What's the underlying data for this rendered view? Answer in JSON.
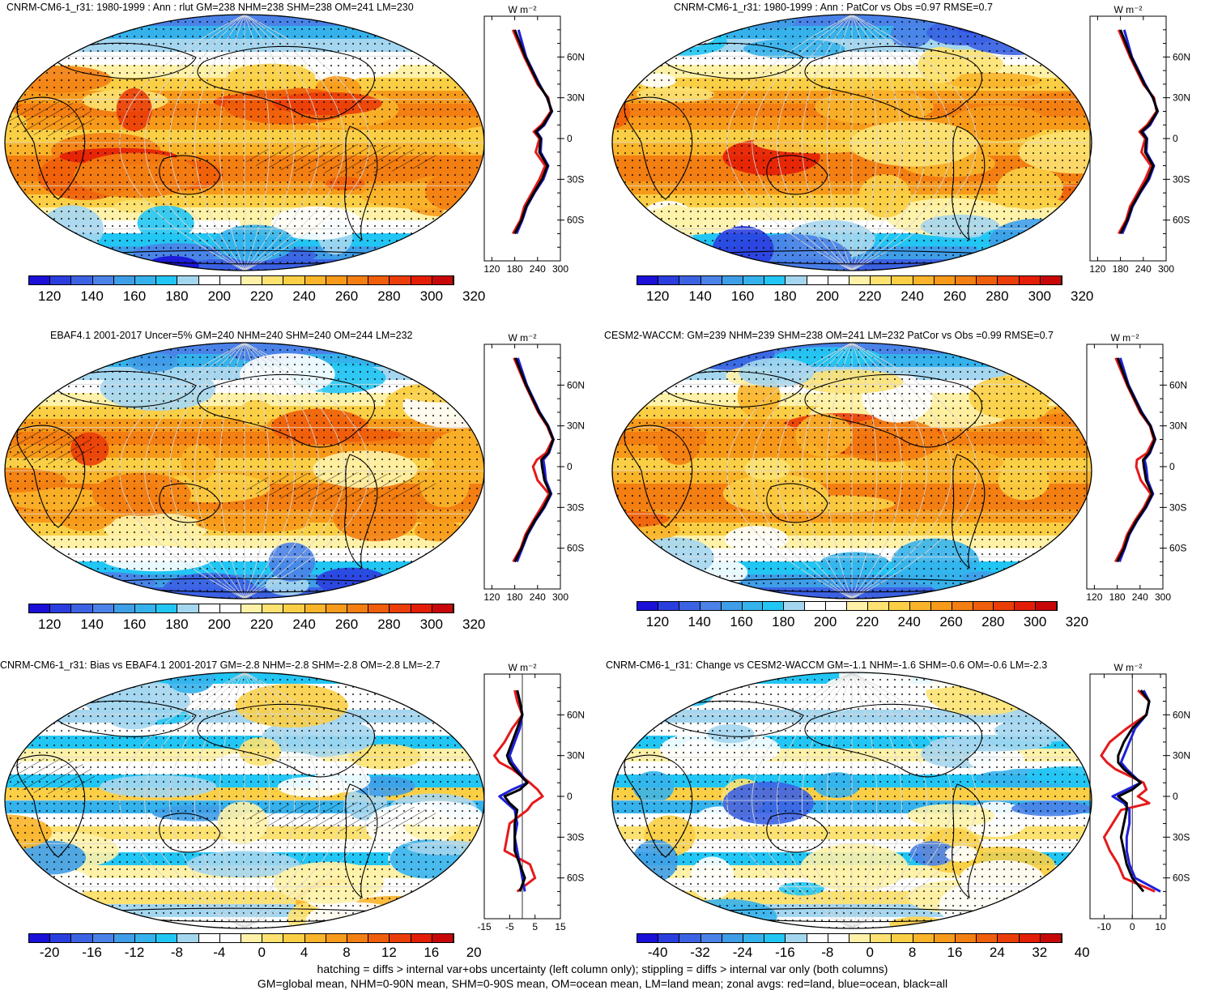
{
  "footer": {
    "line1": "hatching = diffs > internal var+obs uncertainty (left column only); stippling = diffs > internal var only (both columns)",
    "line2": "GM=global mean, NHM=0-90N mean, SHM=0-90S mean, OM=ocean mean, LM=land mean; zonal avgs: red=land, blue=ocean, black=all"
  },
  "colors": {
    "abs_scale": [
      "#1a10d8",
      "#2a3ee0",
      "#3c62e4",
      "#4a82e8",
      "#3f9ee8",
      "#35b2ec",
      "#22c6f4",
      "#a4d6f0",
      "#ffffff",
      "#ffffff",
      "#fff2a8",
      "#fde272",
      "#fbcf45",
      "#f9b42a",
      "#f79a1a",
      "#f37e12",
      "#ef5e0a",
      "#ea3d08",
      "#e41e06",
      "#c80808"
    ],
    "diff_scale": [
      "#1a10d8",
      "#2a3ee0",
      "#3c62e4",
      "#4a82e8",
      "#3f9ee8",
      "#35b2ec",
      "#22c6f4",
      "#a4d6f0",
      "#ffffff",
      "#ffffff",
      "#fff2a8",
      "#fde272",
      "#fbcf45",
      "#f9b42a",
      "#f79a1a",
      "#f37e12",
      "#ef5e0a",
      "#ea3d08",
      "#e41e06",
      "#c80808"
    ],
    "land_line": "#e41a1c",
    "ocean_line": "#1f20d8",
    "all_line": "#000000"
  },
  "units": "W m⁻²",
  "panels": [
    {
      "id": "model",
      "title": "CNRM-CM6-1_r31: 1980-1999 : Ann : rlut GM=238 NHM=238 SHM=238 OM=241 LM=230",
      "scale": "abs",
      "cbar_labels": [
        "120",
        "140",
        "160",
        "180",
        "200",
        "220",
        "240",
        "260",
        "280",
        "300",
        "320"
      ],
      "zonal_ticks_x": [
        "120",
        "180",
        "240",
        "300"
      ],
      "zonal_ticks_y": [
        "60N",
        "30N",
        "0",
        "30S",
        "60S"
      ]
    },
    {
      "id": "model-patcor",
      "title": "CNRM-CM6-1_r31: 1980-1999 : Ann : PatCor vs Obs =0.97 RMSE=0.7",
      "scale": "abs",
      "cbar_labels": [
        "120",
        "140",
        "160",
        "180",
        "200",
        "220",
        "240",
        "260",
        "280",
        "300",
        "320"
      ],
      "zonal_ticks_x": [
        "120",
        "180",
        "240",
        "300"
      ],
      "zonal_ticks_y": [
        "60N",
        "30N",
        "0",
        "30S",
        "60S"
      ]
    },
    {
      "id": "obs",
      "title": "EBAF4.1 2001-2017 Uncer=5% GM=240 NHM=240 SHM=240 OM=244 LM=232",
      "scale": "abs",
      "cbar_labels": [
        "120",
        "140",
        "160",
        "180",
        "200",
        "220",
        "240",
        "260",
        "280",
        "300",
        "320"
      ],
      "zonal_ticks_x": [
        "120",
        "180",
        "240",
        "300"
      ],
      "zonal_ticks_y": [
        "60N",
        "30N",
        "0",
        "30S",
        "60S"
      ]
    },
    {
      "id": "ref-model",
      "title": "CESM2-WACCM: GM=239 NHM=239 SHM=238 OM=241 LM=232 PatCor vs Obs =0.99 RMSE=0.7",
      "scale": "abs",
      "cbar_labels": [
        "120",
        "140",
        "160",
        "180",
        "200",
        "220",
        "240",
        "260",
        "280",
        "300",
        "320"
      ],
      "zonal_ticks_x": [
        "120",
        "180",
        "240",
        "300"
      ],
      "zonal_ticks_y": [
        "60N",
        "30N",
        "0",
        "30S",
        "60S"
      ]
    },
    {
      "id": "bias",
      "title": "CNRM-CM6-1_r31: Bias vs EBAF4.1 2001-2017 GM=-2.8 NHM=-2.8 SHM=-2.8 OM=-2.8 LM=-2.7",
      "scale": "diff",
      "cbar_labels": [
        "-20",
        "-16",
        "-12",
        "-8",
        "-4",
        "0",
        "4",
        "8",
        "12",
        "16",
        "20"
      ],
      "zonal_ticks_x": [
        "-15",
        "-5",
        "5",
        "15"
      ],
      "zonal_ticks_y": [
        "60N",
        "30N",
        "0",
        "30S",
        "60S"
      ]
    },
    {
      "id": "change",
      "title": "CNRM-CM6-1_r31: Change vs CESM2-WACCM GM=-1.1 NHM=-1.6 SHM=-0.6 OM=-0.6 LM=-2.3",
      "scale": "diff",
      "cbar_labels": [
        "-40",
        "-32",
        "-24",
        "-16",
        "-8",
        "0",
        "8",
        "16",
        "24",
        "32",
        "40"
      ],
      "zonal_ticks_x": [
        "-10",
        "0",
        "10"
      ],
      "zonal_ticks_y": [
        "60N",
        "30N",
        "0",
        "30S",
        "60S"
      ]
    }
  ],
  "chart_data": [
    {
      "type": "line",
      "title": "CNRM-CM6-1_r31: 1980-1999 : Ann : rlut GM=238 NHM=238 SHM=238 OM=241 LM=230",
      "xlabel": "W m⁻²",
      "xlim": [
        100,
        300
      ],
      "x_axis": "value",
      "y_axis": "latitude",
      "series": [
        {
          "name": "land",
          "lat": [
            80,
            60,
            40,
            30,
            20,
            10,
            5,
            0,
            -10,
            -20,
            -30,
            -40,
            -50,
            -60,
            -70
          ],
          "values": [
            175,
            205,
            240,
            268,
            275,
            250,
            230,
            245,
            235,
            260,
            245,
            225,
            205,
            195,
            175
          ]
        },
        {
          "name": "ocean",
          "lat": [
            80,
            60,
            40,
            30,
            20,
            10,
            5,
            0,
            -10,
            -20,
            -30,
            -40,
            -50,
            -60,
            -70
          ],
          "values": [
            190,
            210,
            245,
            265,
            278,
            258,
            238,
            250,
            248,
            268,
            255,
            232,
            212,
            200,
            185
          ]
        },
        {
          "name": "all",
          "lat": [
            80,
            60,
            40,
            30,
            20,
            10,
            5,
            0,
            -10,
            -20,
            -30,
            -40,
            -50,
            -60,
            -70
          ],
          "values": [
            180,
            208,
            243,
            266,
            277,
            255,
            235,
            248,
            245,
            266,
            252,
            230,
            210,
            198,
            180
          ]
        }
      ]
    },
    {
      "type": "line",
      "title": "CNRM-CM6-1_r31: 1980-1999 : Ann : PatCor vs Obs =0.97 RMSE=0.7",
      "xlabel": "W m⁻²",
      "xlim": [
        100,
        300
      ],
      "series": [
        {
          "name": "land",
          "lat": [
            80,
            60,
            40,
            30,
            20,
            10,
            5,
            0,
            -10,
            -20,
            -30,
            -40,
            -50,
            -60,
            -70
          ],
          "values": [
            175,
            205,
            240,
            268,
            275,
            250,
            230,
            245,
            235,
            260,
            245,
            225,
            205,
            195,
            175
          ]
        },
        {
          "name": "ocean",
          "lat": [
            80,
            60,
            40,
            30,
            20,
            10,
            5,
            0,
            -10,
            -20,
            -30,
            -40,
            -50,
            -60,
            -70
          ],
          "values": [
            190,
            210,
            245,
            265,
            278,
            258,
            238,
            250,
            248,
            268,
            255,
            232,
            212,
            200,
            185
          ]
        },
        {
          "name": "all",
          "lat": [
            80,
            60,
            40,
            30,
            20,
            10,
            5,
            0,
            -10,
            -20,
            -30,
            -40,
            -50,
            -60,
            -70
          ],
          "values": [
            180,
            208,
            243,
            266,
            277,
            255,
            235,
            248,
            245,
            266,
            252,
            230,
            210,
            198,
            180
          ]
        }
      ]
    },
    {
      "type": "line",
      "title": "EBAF4.1 2001-2017 Uncer=5% GM=240 NHM=240 SHM=240 OM=244 LM=232",
      "xlabel": "W m⁻²",
      "xlim": [
        100,
        300
      ],
      "series": [
        {
          "name": "land",
          "lat": [
            80,
            60,
            40,
            30,
            20,
            10,
            5,
            0,
            -10,
            -20,
            -30,
            -40,
            -50,
            -60,
            -70
          ],
          "values": [
            178,
            208,
            242,
            265,
            280,
            262,
            238,
            228,
            240,
            270,
            250,
            228,
            208,
            196,
            176
          ]
        },
        {
          "name": "ocean",
          "lat": [
            80,
            60,
            40,
            30,
            20,
            10,
            5,
            0,
            -10,
            -20,
            -30,
            -40,
            -50,
            -60,
            -70
          ],
          "values": [
            188,
            212,
            246,
            268,
            282,
            270,
            255,
            258,
            262,
            276,
            258,
            234,
            214,
            200,
            186
          ]
        },
        {
          "name": "all",
          "lat": [
            80,
            60,
            40,
            30,
            20,
            10,
            5,
            0,
            -10,
            -20,
            -30,
            -40,
            -50,
            -60,
            -70
          ],
          "values": [
            182,
            210,
            244,
            267,
            281,
            268,
            250,
            252,
            258,
            274,
            256,
            232,
            212,
            198,
            180
          ]
        }
      ]
    },
    {
      "type": "line",
      "title": "CESM2-WACCM: GM=239 NHM=239 SHM=238 OM=241 LM=232 PatCor vs Obs =0.99 RMSE=0.7",
      "xlabel": "W m⁻²",
      "xlim": [
        100,
        300
      ],
      "series": [
        {
          "name": "land",
          "lat": [
            80,
            60,
            40,
            30,
            20,
            10,
            5,
            0,
            -10,
            -20,
            -30,
            -40,
            -50,
            -60,
            -70
          ],
          "values": [
            176,
            206,
            240,
            266,
            276,
            258,
            232,
            230,
            242,
            268,
            250,
            226,
            206,
            194,
            175
          ]
        },
        {
          "name": "ocean",
          "lat": [
            80,
            60,
            40,
            30,
            20,
            10,
            5,
            0,
            -10,
            -20,
            -30,
            -40,
            -50,
            -60,
            -70
          ],
          "values": [
            188,
            210,
            245,
            268,
            280,
            266,
            252,
            256,
            260,
            274,
            256,
            232,
            212,
            200,
            186
          ]
        },
        {
          "name": "all",
          "lat": [
            80,
            60,
            40,
            30,
            20,
            10,
            5,
            0,
            -10,
            -20,
            -30,
            -40,
            -50,
            -60,
            -70
          ],
          "values": [
            181,
            208,
            243,
            267,
            279,
            264,
            248,
            250,
            256,
            272,
            254,
            230,
            210,
            198,
            180
          ]
        }
      ]
    },
    {
      "type": "line",
      "title": "CNRM-CM6-1_r31: Bias vs EBAF4.1 2001-2017 GM=-2.8 NHM=-2.8 SHM=-2.8 OM=-2.8 LM=-2.7",
      "xlabel": "W m⁻²",
      "xlim": [
        -15,
        15
      ],
      "series": [
        {
          "name": "land",
          "lat": [
            78,
            70,
            60,
            50,
            40,
            30,
            25,
            20,
            10,
            5,
            0,
            -5,
            -10,
            -20,
            -30,
            -40,
            -50,
            -60,
            -70
          ],
          "values": [
            -3,
            -2,
            0,
            -4,
            -7,
            -11,
            -9,
            -4,
            3,
            6,
            8,
            4,
            2,
            -5,
            -6,
            -7,
            3,
            5,
            -2
          ]
        },
        {
          "name": "ocean",
          "lat": [
            78,
            70,
            60,
            50,
            40,
            30,
            25,
            20,
            10,
            5,
            0,
            -5,
            -10,
            -20,
            -30,
            -40,
            -50,
            -60,
            -70
          ],
          "values": [
            -2,
            -1,
            0,
            -1,
            -3,
            -5,
            -4,
            -2,
            2,
            -4,
            -9,
            -6,
            -3,
            -2,
            -3,
            -2,
            -1,
            0,
            1
          ]
        },
        {
          "name": "all",
          "lat": [
            78,
            70,
            60,
            50,
            40,
            30,
            25,
            20,
            10,
            5,
            0,
            -5,
            -10,
            -20,
            -30,
            -40,
            -50,
            -60,
            -70
          ],
          "values": [
            -2,
            -1,
            0,
            -2,
            -4,
            -6,
            -5,
            -3,
            2,
            -1,
            -7,
            -5,
            -2,
            -3,
            -3,
            -3,
            -1,
            1,
            -1
          ]
        }
      ]
    },
    {
      "type": "line",
      "title": "CNRM-CM6-1_r31: Change vs CESM2-WACCM GM=-1.1 NHM=-1.6 SHM=-0.6 OM=-0.6 LM=-2.3",
      "xlabel": "W m⁻²",
      "xlim": [
        -15,
        12
      ],
      "series": [
        {
          "name": "land",
          "lat": [
            78,
            70,
            60,
            50,
            40,
            30,
            25,
            20,
            10,
            5,
            0,
            -5,
            -10,
            -20,
            -30,
            -40,
            -50,
            -60,
            -70
          ],
          "values": [
            2,
            6,
            5,
            -2,
            -8,
            -11,
            -9,
            -6,
            4,
            5,
            2,
            6,
            -4,
            -7,
            -10,
            -8,
            -5,
            -3,
            8
          ]
        },
        {
          "name": "ocean",
          "lat": [
            78,
            70,
            60,
            50,
            40,
            30,
            25,
            20,
            10,
            5,
            0,
            -5,
            -10,
            -20,
            -30,
            -40,
            -50,
            -60,
            -70
          ],
          "values": [
            4,
            6,
            5,
            1,
            -1,
            -3,
            -4,
            -2,
            3,
            -2,
            -7,
            -3,
            -1,
            -1,
            -2,
            -2,
            -1,
            1,
            10
          ]
        },
        {
          "name": "all",
          "lat": [
            78,
            70,
            60,
            50,
            40,
            30,
            25,
            20,
            10,
            5,
            0,
            -5,
            -10,
            -20,
            -30,
            -40,
            -50,
            -60,
            -70
          ],
          "values": [
            3,
            6,
            5,
            0,
            -3,
            -5,
            -5,
            -3,
            3,
            0,
            -5,
            -2,
            -2,
            -3,
            -4,
            -3,
            -2,
            0,
            4
          ]
        }
      ]
    }
  ]
}
